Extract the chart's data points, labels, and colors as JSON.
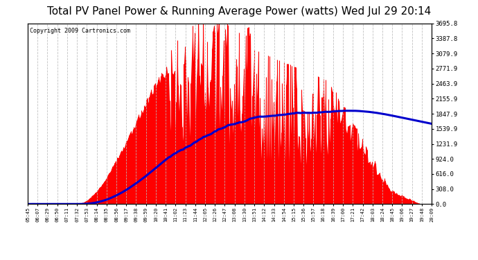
{
  "title": "Total PV Panel Power & Running Average Power (watts) Wed Jul 29 20:14",
  "copyright": "Copyright 2009 Cartronics.com",
  "ylabel_right": [
    "0.0",
    "308.0",
    "616.0",
    "924.0",
    "1231.9",
    "1539.9",
    "1847.9",
    "2155.9",
    "2463.9",
    "2771.9",
    "3079.9",
    "3387.8",
    "3695.8"
  ],
  "ytick_values": [
    0.0,
    308.0,
    616.0,
    924.0,
    1231.9,
    1539.9,
    1847.9,
    2155.9,
    2463.9,
    2771.9,
    3079.9,
    3387.8,
    3695.8
  ],
  "ymax": 3695.8,
  "ymin": 0.0,
  "background_color": "#ffffff",
  "plot_bg_color": "#ffffff",
  "grid_color": "#bbbbbb",
  "bar_color": "#ff0000",
  "line_color": "#0000cc",
  "title_fontsize": 11,
  "copyright_fontsize": 6,
  "x_labels": [
    "05:45",
    "06:07",
    "06:29",
    "06:50",
    "07:11",
    "07:32",
    "07:53",
    "08:14",
    "08:35",
    "08:56",
    "09:17",
    "09:38",
    "09:59",
    "10:20",
    "10:41",
    "11:02",
    "11:23",
    "11:44",
    "12:05",
    "12:26",
    "12:47",
    "13:08",
    "13:30",
    "13:51",
    "14:12",
    "14:33",
    "14:54",
    "15:15",
    "15:36",
    "15:57",
    "16:18",
    "16:39",
    "17:00",
    "17:21",
    "17:42",
    "18:03",
    "18:24",
    "18:45",
    "19:06",
    "19:27",
    "19:48",
    "20:09"
  ],
  "num_points": 420
}
